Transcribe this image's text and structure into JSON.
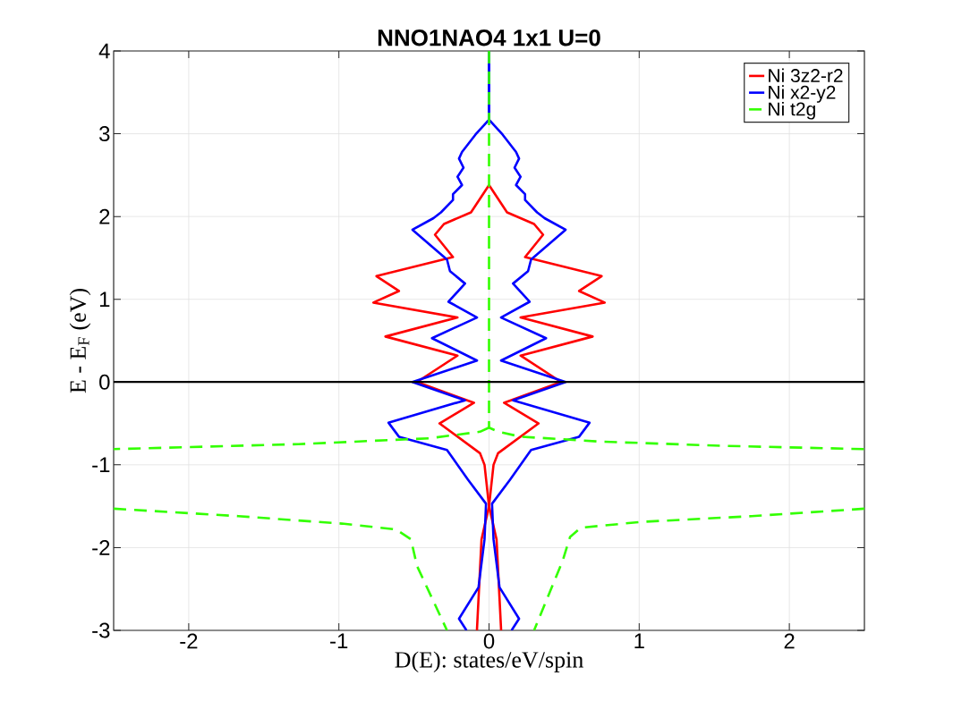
{
  "chart_data": {
    "type": "line",
    "title": "NNO1NAO4 1x1 U=0",
    "xlabel": "D(E): states/eV/spin",
    "ylabel": "E - E$_{F}$ (eV)",
    "xlim": [
      -2.5,
      2.5
    ],
    "xticks": [
      -2,
      -1,
      0,
      1,
      2
    ],
    "ylim": [
      -3,
      4
    ],
    "yticks": [
      -3,
      -2,
      -1,
      0,
      1,
      2,
      3,
      4
    ],
    "grid": true,
    "legend": "top right",
    "series": [
      {
        "name": "Ni 3z2-r2",
        "color": "#ff0000",
        "line_style": "solid",
        "x": [
          0,
          0.12,
          0.3,
          0.36,
          0.24,
          0.75,
          0.6,
          0.77,
          0.21,
          0.69,
          0.21,
          0.48,
          0.1,
          0.33,
          0.06,
          0.03,
          0.0,
          0.05,
          0.08,
          0.08
        ],
        "values": [
          2.38,
          2.05,
          1.91,
          1.78,
          1.51,
          1.28,
          1.1,
          0.96,
          0.78,
          0.55,
          0.32,
          0,
          -0.25,
          -0.5,
          -0.86,
          -1.0,
          -1.5,
          -1.9,
          -2.98,
          -3
        ]
      },
      {
        "color": "#ff0000",
        "line_style": "solid",
        "x": [
          0,
          -0.12,
          -0.3,
          -0.36,
          -0.24,
          -0.75,
          -0.6,
          -0.77,
          -0.21,
          -0.69,
          -0.21,
          -0.48,
          -0.1,
          -0.33,
          -0.06,
          -0.03,
          0.0,
          -0.05,
          -0.08,
          -0.08
        ],
        "values": [
          2.38,
          2.05,
          1.91,
          1.78,
          1.51,
          1.28,
          1.1,
          0.96,
          0.78,
          0.55,
          0.32,
          0,
          -0.25,
          -0.5,
          -0.86,
          -1.0,
          -1.5,
          -1.9,
          -2.98,
          -3
        ]
      },
      {
        "name": "Ni x2-y2",
        "color": "#0000ff",
        "line_style": "solid",
        "x": [
          0,
          0,
          0.09,
          0.18,
          0.2,
          0.17,
          0.21,
          0.18,
          0.24,
          0.24,
          0.32,
          0.37,
          0.51,
          0.28,
          0.26,
          0.16,
          0.27,
          0.08,
          0.38,
          0.08,
          0.51,
          0.16,
          0.67,
          0.6,
          0.28,
          0.14,
          0.02,
          0.03,
          0.07,
          0.2,
          0.15
        ],
        "values": [
          4,
          3.17,
          2.99,
          2.78,
          2.7,
          2.59,
          2.48,
          2.38,
          2.27,
          2.2,
          2.05,
          1.98,
          1.84,
          1.48,
          1.34,
          1.19,
          0.97,
          0.78,
          0.53,
          0.26,
          0,
          -0.22,
          -0.49,
          -0.66,
          -0.82,
          -1.18,
          -1.47,
          -1.9,
          -2.48,
          -2.86,
          -3
        ]
      },
      {
        "color": "#0000ff",
        "line_style": "solid",
        "x": [
          0,
          0,
          -0.09,
          -0.18,
          -0.2,
          -0.17,
          -0.21,
          -0.18,
          -0.24,
          -0.24,
          -0.32,
          -0.37,
          -0.51,
          -0.28,
          -0.26,
          -0.16,
          -0.27,
          -0.08,
          -0.38,
          -0.08,
          -0.51,
          -0.16,
          -0.67,
          -0.6,
          -0.28,
          -0.14,
          -0.02,
          -0.03,
          -0.07,
          -0.2,
          -0.15
        ],
        "values": [
          4,
          3.17,
          2.99,
          2.78,
          2.7,
          2.59,
          2.48,
          2.38,
          2.27,
          2.2,
          2.05,
          1.98,
          1.84,
          1.48,
          1.34,
          1.19,
          0.97,
          0.78,
          0.53,
          0.26,
          0,
          -0.22,
          -0.49,
          -0.66,
          -0.82,
          -1.18,
          -1.47,
          -1.9,
          -2.48,
          -2.86,
          -3
        ]
      },
      {
        "name": "Ni t2g",
        "color": "#33ff00",
        "line_style": "dashed",
        "x": [
          0,
          0,
          0.06,
          0.21,
          0.75,
          1.55,
          2.5,
          null,
          2.5,
          1.75,
          1.01,
          0.61,
          0.54,
          0.49,
          0.3
        ],
        "values": [
          4,
          -0.55,
          -0.6,
          -0.66,
          -0.72,
          -0.77,
          -0.81,
          null,
          -1.53,
          -1.62,
          -1.69,
          -1.76,
          -1.87,
          -2.16,
          -3
        ]
      },
      {
        "color": "#33ff00",
        "line_style": "dashed",
        "x": [
          0,
          -0.06,
          -0.4,
          -1.27,
          -2.5,
          null,
          -2.5,
          -1.67,
          -0.98,
          -0.62,
          -0.52,
          -0.48,
          -0.28
        ],
        "values": [
          -0.55,
          -0.6,
          -0.68,
          -0.75,
          -0.81,
          null,
          -1.53,
          -1.62,
          -1.71,
          -1.78,
          -1.9,
          -2.22,
          -3
        ]
      }
    ],
    "ref_lines": [
      {
        "axis": "y",
        "value": 0,
        "color": "#000000"
      }
    ]
  }
}
